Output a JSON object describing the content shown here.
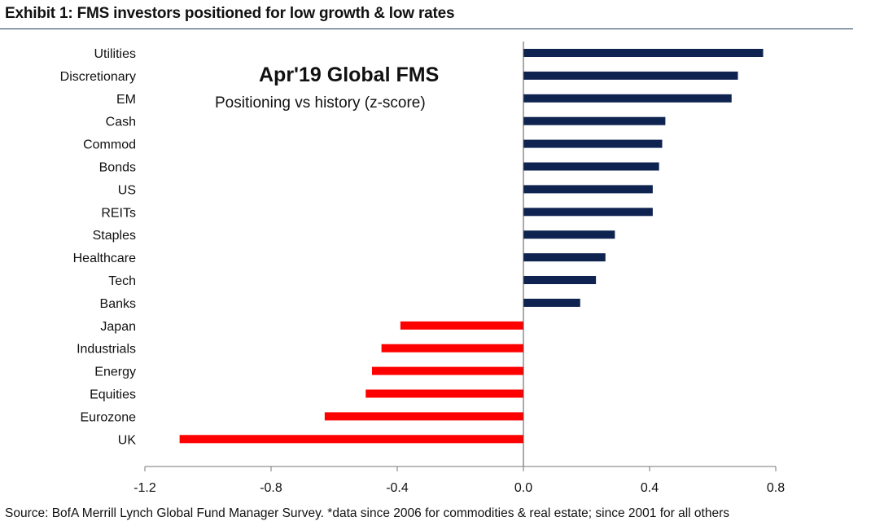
{
  "title": "Exhibit 1: FMS investors positioned for low growth & low rates",
  "source": "Source: BofA Merrill Lynch Global Fund Manager Survey. *data since 2006 for commodities & real estate; since 2001 for all others",
  "chart_data": {
    "type": "bar",
    "orientation": "horizontal",
    "title": "Apr'19 Global FMS",
    "subtitle": "Positioning vs history (z-score)",
    "categories": [
      "Utilities",
      "Discretionary",
      "EM",
      "Cash",
      "Commod",
      "Bonds",
      "US",
      "REITs",
      "Staples",
      "Healthcare",
      "Tech",
      "Banks",
      "Japan",
      "Industrials",
      "Energy",
      "Equities",
      "Eurozone",
      "UK"
    ],
    "values": [
      0.76,
      0.68,
      0.66,
      0.45,
      0.44,
      0.43,
      0.41,
      0.41,
      0.29,
      0.26,
      0.23,
      0.18,
      -0.39,
      -0.45,
      -0.48,
      -0.5,
      -0.63,
      -1.09
    ],
    "xlim": [
      -1.2,
      0.8
    ],
    "xticks": [
      "-1.2",
      "-0.8",
      "-0.4",
      "0.0",
      "0.4",
      "0.8"
    ],
    "xtick_values": [
      -1.2,
      -0.8,
      -0.4,
      0.0,
      0.4,
      0.8
    ],
    "colors": {
      "positive": "#0e2350",
      "negative": "#ff0000"
    },
    "grid": false,
    "legend": "none"
  }
}
